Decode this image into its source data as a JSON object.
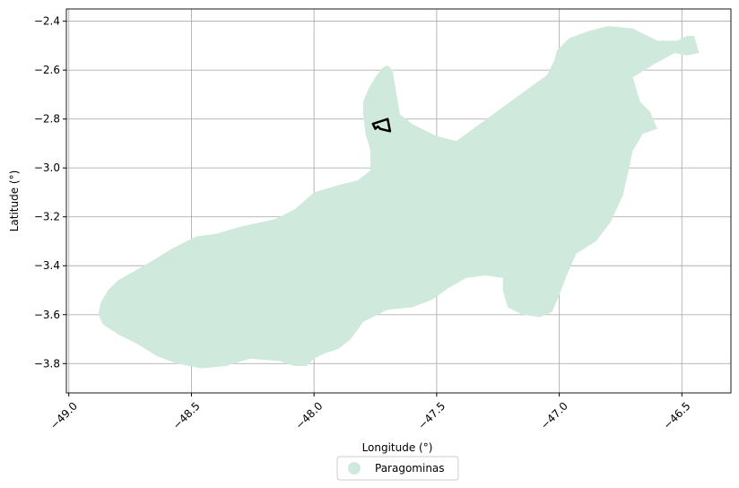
{
  "chart_data": {
    "type": "map",
    "xlabel": "Longitude (°)",
    "ylabel": "Latitude (°)",
    "xlim": [
      -49.01,
      -46.3
    ],
    "ylim": [
      -3.92,
      -2.35
    ],
    "grid": true,
    "xticks": [
      -49.0,
      -48.5,
      -48.0,
      -47.5,
      -47.0,
      -46.5
    ],
    "xtick_labels": [
      "−49.0",
      "−48.5",
      "−48.0",
      "−47.5",
      "−47.0",
      "−46.5"
    ],
    "yticks": [
      -2.4,
      -2.6,
      -2.8,
      -3.0,
      -3.2,
      -3.4,
      -3.6,
      -3.8
    ],
    "ytick_labels": [
      "−2.4",
      "−2.6",
      "−2.8",
      "−3.0",
      "−3.2",
      "−3.4",
      "−3.6",
      "−3.8"
    ],
    "legend": {
      "placement": "bottom-center",
      "label": "Paragominas"
    },
    "region": {
      "name": "Paragominas",
      "color": "#cfeadc",
      "boundary": [
        [
          -48.88,
          -3.6
        ],
        [
          -48.87,
          -3.55
        ],
        [
          -48.84,
          -3.5
        ],
        [
          -48.8,
          -3.46
        ],
        [
          -48.73,
          -3.42
        ],
        [
          -48.66,
          -3.38
        ],
        [
          -48.58,
          -3.33
        ],
        [
          -48.48,
          -3.28
        ],
        [
          -48.4,
          -3.27
        ],
        [
          -48.3,
          -3.24
        ],
        [
          -48.16,
          -3.21
        ],
        [
          -48.08,
          -3.17
        ],
        [
          -48.0,
          -3.1
        ],
        [
          -47.9,
          -3.07
        ],
        [
          -47.82,
          -3.05
        ],
        [
          -47.77,
          -3.01
        ],
        [
          -47.77,
          -2.93
        ],
        [
          -47.79,
          -2.86
        ],
        [
          -47.8,
          -2.78
        ],
        [
          -47.8,
          -2.73
        ],
        [
          -47.78,
          -2.68
        ],
        [
          -47.75,
          -2.63
        ],
        [
          -47.72,
          -2.59
        ],
        [
          -47.7,
          -2.58
        ],
        [
          -47.68,
          -2.6
        ],
        [
          -47.67,
          -2.66
        ],
        [
          -47.66,
          -2.72
        ],
        [
          -47.65,
          -2.78
        ],
        [
          -47.6,
          -2.82
        ],
        [
          -47.5,
          -2.87
        ],
        [
          -47.42,
          -2.89
        ],
        [
          -47.05,
          -2.62
        ],
        [
          -47.02,
          -2.56
        ],
        [
          -47.01,
          -2.52
        ],
        [
          -46.96,
          -2.47
        ],
        [
          -46.88,
          -2.44
        ],
        [
          -46.8,
          -2.42
        ],
        [
          -46.7,
          -2.43
        ],
        [
          -46.6,
          -2.48
        ],
        [
          -46.52,
          -2.48
        ],
        [
          -46.48,
          -2.46
        ],
        [
          -46.45,
          -2.46
        ],
        [
          -46.43,
          -2.53
        ],
        [
          -46.48,
          -2.54
        ],
        [
          -46.53,
          -2.53
        ],
        [
          -46.62,
          -2.58
        ],
        [
          -46.7,
          -2.63
        ],
        [
          -46.67,
          -2.73
        ],
        [
          -46.63,
          -2.77
        ],
        [
          -46.6,
          -2.84
        ],
        [
          -46.66,
          -2.86
        ],
        [
          -46.7,
          -2.93
        ],
        [
          -46.72,
          -3.02
        ],
        [
          -46.74,
          -3.11
        ],
        [
          -46.79,
          -3.22
        ],
        [
          -46.85,
          -3.3
        ],
        [
          -46.93,
          -3.35
        ],
        [
          -46.97,
          -3.44
        ],
        [
          -47.0,
          -3.52
        ],
        [
          -47.03,
          -3.59
        ],
        [
          -47.08,
          -3.61
        ],
        [
          -47.15,
          -3.6
        ],
        [
          -47.21,
          -3.57
        ],
        [
          -47.23,
          -3.5
        ],
        [
          -47.23,
          -3.45
        ],
        [
          -47.3,
          -3.44
        ],
        [
          -47.38,
          -3.45
        ],
        [
          -47.45,
          -3.49
        ],
        [
          -47.52,
          -3.54
        ],
        [
          -47.6,
          -3.57
        ],
        [
          -47.7,
          -3.58
        ],
        [
          -47.8,
          -3.63
        ],
        [
          -47.85,
          -3.7
        ],
        [
          -47.9,
          -3.74
        ],
        [
          -47.96,
          -3.76
        ],
        [
          -48.0,
          -3.78
        ],
        [
          -48.03,
          -3.81
        ],
        [
          -48.08,
          -3.81
        ],
        [
          -48.14,
          -3.79
        ],
        [
          -48.26,
          -3.78
        ],
        [
          -48.36,
          -3.81
        ],
        [
          -48.46,
          -3.82
        ],
        [
          -48.56,
          -3.8
        ],
        [
          -48.64,
          -3.77
        ],
        [
          -48.72,
          -3.72
        ],
        [
          -48.8,
          -3.68
        ],
        [
          -48.86,
          -3.64
        ]
      ]
    },
    "marker_polygon": [
      [
        -47.76,
        -2.82
      ],
      [
        -47.7,
        -2.8
      ],
      [
        -47.69,
        -2.85
      ],
      [
        -47.73,
        -2.84
      ],
      [
        -47.74,
        -2.83
      ],
      [
        -47.75,
        -2.84
      ]
    ]
  }
}
